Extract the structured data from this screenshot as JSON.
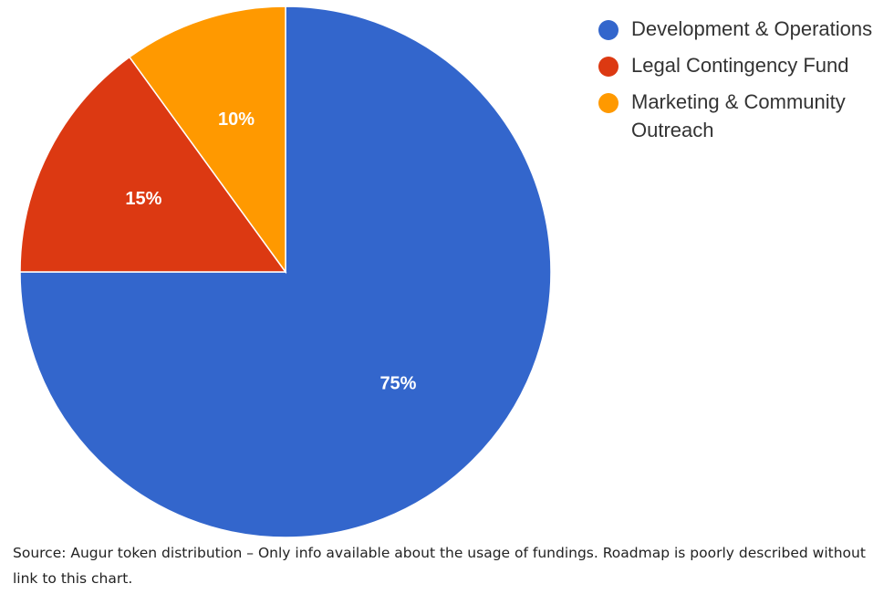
{
  "chart_data": {
    "type": "pie",
    "slices": [
      {
        "name": "Development & Operations",
        "value": 75,
        "label": "75%",
        "color": "#3366cc"
      },
      {
        "name": "Legal Contingency Fund",
        "value": 15,
        "label": "15%",
        "color": "#dc3912"
      },
      {
        "name": "Marketing & Community Outreach",
        "value": 10,
        "label": "10%",
        "color": "#ff9900"
      }
    ],
    "legend_placement": "top-right"
  },
  "caption": "Source: Augur token distribution – Only info available about the usage of fundings. Roadmap is poorly described without link to this chart."
}
